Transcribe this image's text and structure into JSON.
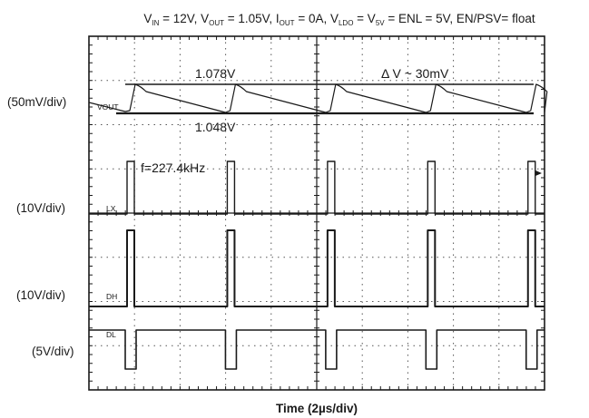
{
  "chart_data": {
    "type": "line",
    "title": {
      "parts": [
        {
          "t": "V",
          "sub": false
        },
        {
          "t": "IN",
          "sub": true
        },
        {
          "t": " = 12V, V",
          "sub": false
        },
        {
          "t": "OUT",
          "sub": true
        },
        {
          "t": " = 1.05V, I",
          "sub": false
        },
        {
          "t": "OUT",
          "sub": true
        },
        {
          "t": " = 0A, V",
          "sub": false
        },
        {
          "t": "LDO",
          "sub": true
        },
        {
          "t": " = V",
          "sub": false
        },
        {
          "t": "5V",
          "sub": true
        },
        {
          "t": " =  ENL = 5V, EN/PSV= float",
          "sub": false
        }
      ]
    },
    "xlabel": "Time (2µs/div)",
    "time_per_div_us": 2,
    "divisions": {
      "x": 10,
      "y": 8
    },
    "grid": true,
    "channels": [
      {
        "tag": "VOUT",
        "scale_label": "(50mV/div)",
        "period_us": 4.4,
        "vmax_V": 1.078,
        "vmin_V": 1.048
      },
      {
        "tag": "LX",
        "scale_label": "(10V/div)",
        "period_us": 4.4
      },
      {
        "tag": "DH",
        "scale_label": "(10V/div)",
        "period_us": 4.4
      },
      {
        "tag": "DL",
        "scale_label": "(5V/div)",
        "period_us": 4.4
      }
    ],
    "annotations": {
      "vmax": "1.078V",
      "vmin": "1.048V",
      "ripple": "Δ V ~ 30mV",
      "freq": "f=227.4kHz"
    }
  }
}
